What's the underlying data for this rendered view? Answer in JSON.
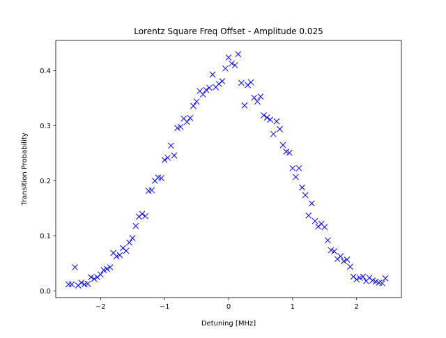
{
  "chart_data": {
    "type": "scatter",
    "title": "Lorentz Square Freq Offset - Amplitude 0.025",
    "xlabel": "Detuning [MHz]",
    "ylabel": "Transition Probability",
    "xlim": [
      -2.7,
      2.7
    ],
    "ylim": [
      -0.012,
      0.455
    ],
    "xticks": [
      -2,
      -1,
      0,
      1,
      2
    ],
    "xtick_labels": [
      "−2",
      "−1",
      "0",
      "1",
      "2"
    ],
    "yticks": [
      0.0,
      0.1,
      0.2,
      0.3,
      0.4
    ],
    "ytick_labels": [
      "0.0",
      "0.1",
      "0.2",
      "0.3",
      "0.4"
    ],
    "grid": false,
    "marker": "x",
    "series": [
      {
        "color": "#0000ff",
        "x": [
          -2.5,
          -2.45,
          -2.4,
          -2.35,
          -2.3,
          -2.25,
          -2.2,
          -2.15,
          -2.1,
          -2.05,
          -2.0,
          -1.95,
          -1.9,
          -1.85,
          -1.8,
          -1.75,
          -1.7,
          -1.65,
          -1.6,
          -1.55,
          -1.5,
          -1.45,
          -1.4,
          -1.35,
          -1.3,
          -1.25,
          -1.2,
          -1.15,
          -1.1,
          -1.05,
          -1.0,
          -0.95,
          -0.9,
          -0.85,
          -0.8,
          -0.75,
          -0.7,
          -0.65,
          -0.6,
          -0.55,
          -0.5,
          -0.45,
          -0.4,
          -0.35,
          -0.3,
          -0.25,
          -0.2,
          -0.15,
          -0.1,
          -0.05,
          0.0,
          0.05,
          0.1,
          0.15,
          0.2,
          0.25,
          0.3,
          0.35,
          0.4,
          0.45,
          0.5,
          0.55,
          0.6,
          0.65,
          0.7,
          0.75,
          0.8,
          0.85,
          0.9,
          0.95,
          1.0,
          1.05,
          1.1,
          1.15,
          1.2,
          1.25,
          1.3,
          1.35,
          1.4,
          1.45,
          1.5,
          1.55,
          1.6,
          1.65,
          1.7,
          1.75,
          1.8,
          1.85,
          1.9,
          1.95,
          2.0,
          2.05,
          2.1,
          2.15,
          2.2,
          2.25,
          2.3,
          2.35,
          2.4,
          2.45
        ],
        "y": [
          0.012,
          0.012,
          0.043,
          0.01,
          0.015,
          0.012,
          0.013,
          0.025,
          0.022,
          0.025,
          0.03,
          0.038,
          0.04,
          0.043,
          0.069,
          0.063,
          0.065,
          0.078,
          0.073,
          0.088,
          0.096,
          0.118,
          0.135,
          0.14,
          0.136,
          0.182,
          0.183,
          0.2,
          0.206,
          0.205,
          0.238,
          0.242,
          0.264,
          0.246,
          0.296,
          0.298,
          0.313,
          0.307,
          0.314,
          0.336,
          0.344,
          0.363,
          0.357,
          0.365,
          0.369,
          0.393,
          0.37,
          0.376,
          0.381,
          0.404,
          0.424,
          0.413,
          0.41,
          0.43,
          0.378,
          0.337,
          0.374,
          0.379,
          0.351,
          0.344,
          0.353,
          0.319,
          0.315,
          0.311,
          0.285,
          0.308,
          0.294,
          0.265,
          0.253,
          0.251,
          0.223,
          0.207,
          0.223,
          0.188,
          0.174,
          0.137,
          0.159,
          0.127,
          0.117,
          0.122,
          0.116,
          0.092,
          0.074,
          0.072,
          0.058,
          0.063,
          0.054,
          0.057,
          0.044,
          0.026,
          0.021,
          0.024,
          0.026,
          0.018,
          0.024,
          0.019,
          0.017,
          0.015,
          0.014,
          0.023
        ]
      }
    ]
  }
}
